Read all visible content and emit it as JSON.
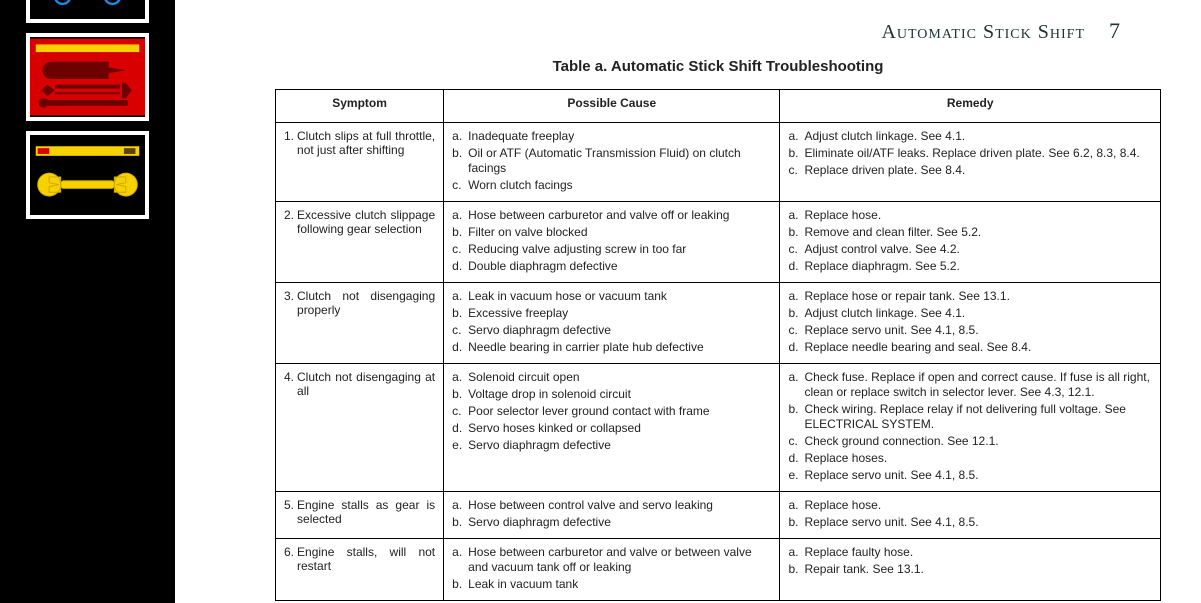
{
  "thumbnails": [
    {
      "bg": "#000000",
      "tool_color": "#1c8ae6",
      "type": "car"
    },
    {
      "bg": "#d80000",
      "tool_color": "#b00000",
      "type": "tools-red"
    },
    {
      "bg": "#000000",
      "tool_color": "#f7d100",
      "type": "wrench-yellow"
    }
  ],
  "page_header": {
    "title": "Automatic Stick Shift",
    "number": "7"
  },
  "table": {
    "title": "Table a. Automatic Stick Shift Troubleshooting",
    "columns": [
      "Symptom",
      "Possible Cause",
      "Remedy"
    ],
    "column_widths": [
      "19%",
      "38%",
      "43%"
    ],
    "rows": [
      {
        "symptom_num": "1.",
        "symptom": "Clutch slips at full throttle, not just after shifting",
        "causes": [
          "Inadequate freeplay",
          "Oil or ATF (Automatic Transmission Fluid) on clutch facings",
          "Worn clutch facings"
        ],
        "remedies": [
          "Adjust clutch linkage. See 4.1.",
          "Eliminate oil/ATF leaks. Replace driven plate. See 6.2, 8.3, 8.4.",
          "Replace driven plate. See 8.4."
        ]
      },
      {
        "symptom_num": "2.",
        "symptom": "Excessive clutch slippage following gear selection",
        "causes": [
          "Hose between carburetor and valve off or leaking",
          "Filter on valve blocked",
          "Reducing valve adjusting screw in too far",
          "Double diaphragm defective"
        ],
        "remedies": [
          "Replace hose.",
          "Remove and clean filter. See 5.2.",
          "Adjust control valve. See 4.2.",
          "Replace diaphragm. See 5.2."
        ]
      },
      {
        "symptom_num": "3.",
        "symptom": "Clutch not disengaging properly",
        "causes": [
          "Leak in vacuum hose or vacuum tank",
          "Excessive freeplay",
          "Servo diaphragm defective",
          "Needle bearing in carrier plate hub defective"
        ],
        "remedies": [
          "Replace hose or repair tank. See 13.1.",
          "Adjust clutch linkage. See 4.1.",
          "Replace servo unit. See 4.1, 8.5.",
          "Replace needle bearing and seal. See 8.4."
        ]
      },
      {
        "symptom_num": "4.",
        "symptom": "Clutch not disengaging at all",
        "causes": [
          "Solenoid circuit open",
          "Voltage drop in solenoid circuit",
          "Poor selector lever ground contact with frame",
          "Servo hoses kinked or collapsed",
          "Servo diaphragm defective"
        ],
        "remedies": [
          "Check fuse. Replace if open and correct cause. If fuse is all right, clean or replace switch in selector lever. See 4.3, 12.1.",
          "Check wiring. Replace relay if not delivering full voltage. See ELECTRICAL SYSTEM.",
          "Check ground connection. See 12.1.",
          "Replace hoses.",
          "Replace servo unit. See 4.1, 8.5."
        ]
      },
      {
        "symptom_num": "5.",
        "symptom": "Engine stalls as gear is selected",
        "causes": [
          "Hose between control valve and servo leaking",
          "Servo diaphragm defective"
        ],
        "remedies": [
          "Replace hose.",
          "Replace servo unit. See 4.1, 8.5."
        ]
      },
      {
        "symptom_num": "6.",
        "symptom": "Engine stalls, will not restart",
        "causes": [
          "Hose between carburetor and valve or between valve and vacuum tank off or leaking",
          "Leak in vacuum tank"
        ],
        "remedies": [
          "Replace faulty hose.",
          "Repair tank. See 13.1."
        ]
      }
    ]
  },
  "style": {
    "page_bg": "#ffffff",
    "sidebar_bg": "#000000",
    "thumb_border": "#ffffff",
    "text_color": "#222222",
    "border_color": "#000000",
    "header_font": "Times New Roman",
    "body_font": "Arial",
    "body_fontsize": 12,
    "title_fontsize": 15,
    "header_fontsize": 20
  }
}
